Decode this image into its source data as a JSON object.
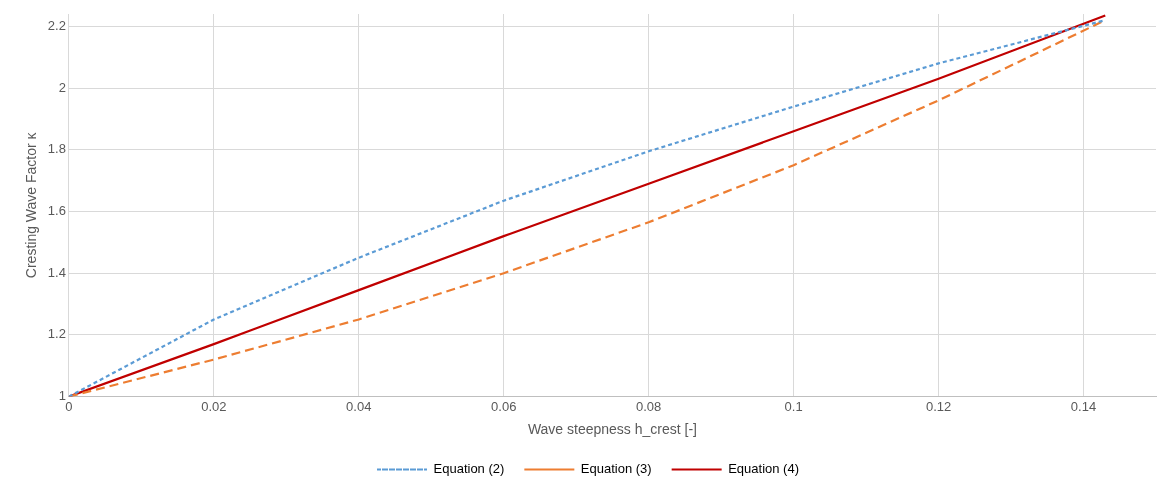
{
  "chart_data": {
    "type": "line",
    "xlabel": "Wave steepness h_crest [-]",
    "ylabel": "Cresting Wave Factor κ",
    "xlim": [
      0,
      0.15
    ],
    "xticks": [
      0,
      0.02,
      0.04,
      0.06,
      0.08,
      0.1,
      0.12,
      0.14
    ],
    "ylim": [
      1,
      2.24
    ],
    "yticks": [
      1,
      1.2,
      1.4,
      1.6,
      1.8,
      2,
      2.2
    ],
    "grid": true,
    "legend": "bottom",
    "marker": "none",
    "series": [
      {
        "name": "Equation (2)",
        "color": "#5b9bd5",
        "line_style": "dotted",
        "x": [
          0,
          0.02,
          0.04,
          0.06,
          0.08,
          0.1,
          0.12,
          0.143
        ],
        "values": [
          1,
          1.25,
          1.45,
          1.635,
          1.795,
          1.94,
          2.08,
          2.22
        ]
      },
      {
        "name": "Equation (3)",
        "color": "#ed7d31",
        "line_style": "dashed",
        "x": [
          0,
          0.02,
          0.04,
          0.06,
          0.08,
          0.1,
          0.12,
          0.143
        ],
        "values": [
          1,
          1.12,
          1.25,
          1.4,
          1.565,
          1.75,
          1.96,
          2.22
        ]
      },
      {
        "name": "Equation (4)",
        "color": "#c00000",
        "line_style": "solid",
        "x": [
          0,
          0.02,
          0.04,
          0.06,
          0.08,
          0.1,
          0.12,
          0.143
        ],
        "values": [
          1,
          1.17,
          1.345,
          1.52,
          1.69,
          1.86,
          2.03,
          2.235
        ]
      }
    ]
  }
}
